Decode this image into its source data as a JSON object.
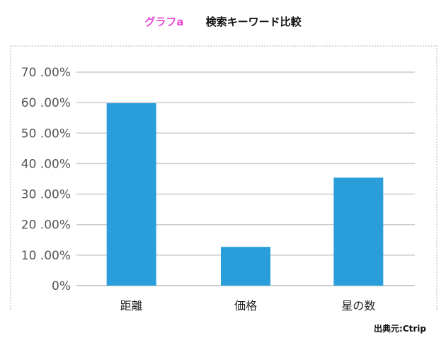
{
  "header": {
    "tag": "グラフa",
    "title": "検索キーワード比較"
  },
  "source": "出典元:Ctrip",
  "colors": {
    "bar": "#2a9edb",
    "grid": "#cccccc",
    "tag": "#e84ad8"
  },
  "chart_data": {
    "type": "bar",
    "categories": [
      "距離",
      "価格",
      "星の数"
    ],
    "values": [
      59.8,
      12.7,
      35.4
    ],
    "ylim": [
      0,
      70
    ],
    "yticks": [
      0,
      10,
      20,
      30,
      40,
      50,
      60,
      70
    ],
    "ytick_labels": [
      "0%",
      "10 .00%",
      "20 .00%",
      "30 .00%",
      "40 .00%",
      "50 .00%",
      "60 .00%",
      "70 .00%"
    ],
    "grid": true,
    "xlabel": "",
    "ylabel": ""
  }
}
